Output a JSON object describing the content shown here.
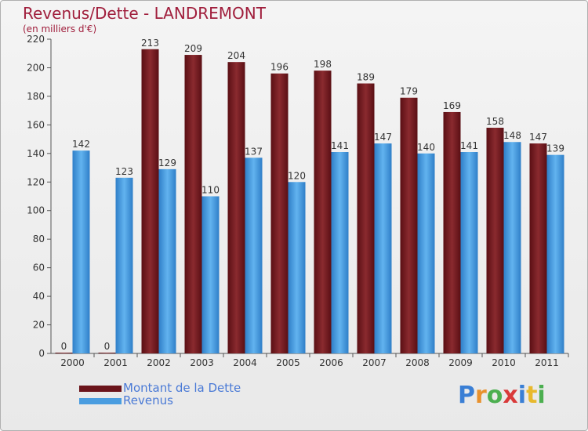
{
  "title": "Revenus/Dette - LANDREMONT",
  "subtitle": "(en milliers d'€)",
  "logo": {
    "letters": [
      {
        "ch": "P",
        "color": "#3a7fd5"
      },
      {
        "ch": "r",
        "color": "#e8912d"
      },
      {
        "ch": "o",
        "color": "#4caf50"
      },
      {
        "ch": "x",
        "color": "#d93a3a"
      },
      {
        "ch": "i",
        "color": "#3a7fd5"
      },
      {
        "ch": "t",
        "color": "#e8b92d"
      },
      {
        "ch": "i",
        "color": "#4caf50"
      }
    ]
  },
  "chart_data": {
    "type": "bar",
    "categories": [
      "2000",
      "2001",
      "2002",
      "2003",
      "2004",
      "2005",
      "2006",
      "2007",
      "2008",
      "2009",
      "2010",
      "2011"
    ],
    "series": [
      {
        "name": "Montant de la Dette",
        "color": "#7a1f24",
        "values": [
          0,
          0,
          213,
          209,
          204,
          196,
          198,
          189,
          179,
          169,
          158,
          147
        ]
      },
      {
        "name": "Revenus",
        "color": "#4a9de0",
        "values": [
          142,
          123,
          129,
          110,
          137,
          120,
          141,
          147,
          140,
          141,
          148,
          139
        ]
      }
    ],
    "ylim": [
      0,
      220
    ],
    "yticks": [
      0,
      20,
      40,
      60,
      80,
      100,
      120,
      140,
      160,
      180,
      200,
      220
    ],
    "grid": false,
    "legend": "bottom-left"
  }
}
